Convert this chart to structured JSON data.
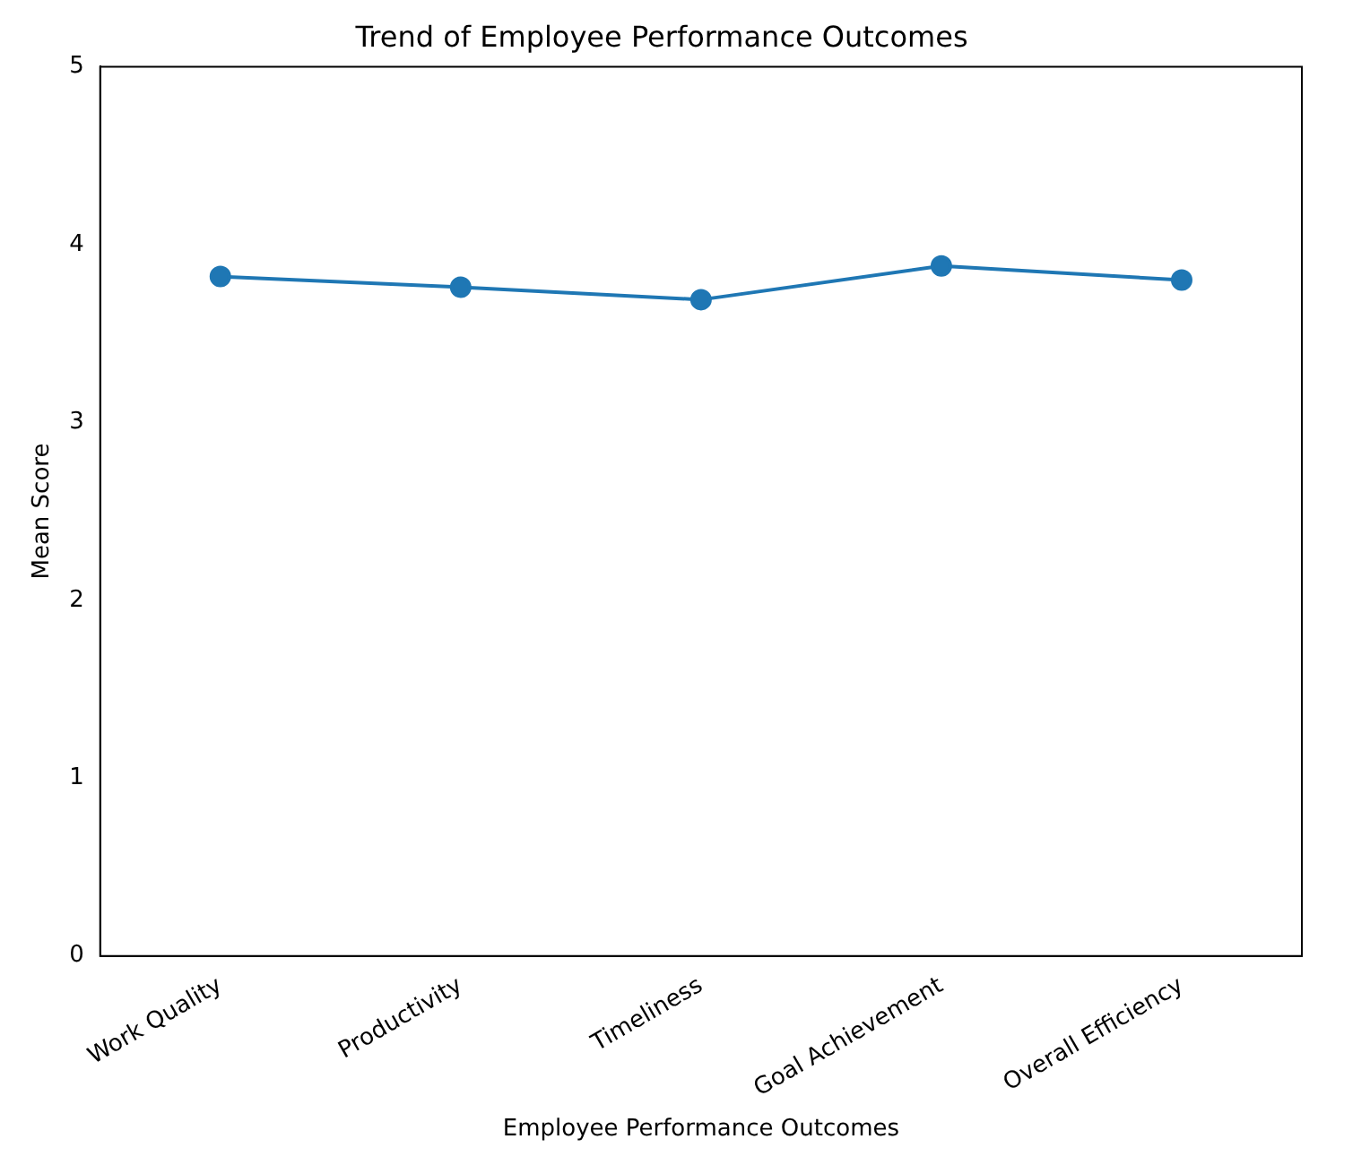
{
  "chart_data": {
    "type": "line",
    "title": "Trend of Employee Performance Outcomes",
    "xlabel": "Employee Performance Outcomes",
    "ylabel": "Mean Score",
    "categories": [
      "Work Quality",
      "Productivity",
      "Timeliness",
      "Goal Achievement",
      "Overall Efficiency"
    ],
    "series": [
      {
        "color": "#1f77b4",
        "values": [
          3.82,
          3.76,
          3.69,
          3.88,
          3.8
        ]
      }
    ],
    "ylim": [
      0,
      5
    ],
    "yticks": [
      0,
      1,
      2,
      3,
      4,
      5
    ],
    "grid": false,
    "legend": false,
    "marker": "circle",
    "line_style": "solid"
  }
}
